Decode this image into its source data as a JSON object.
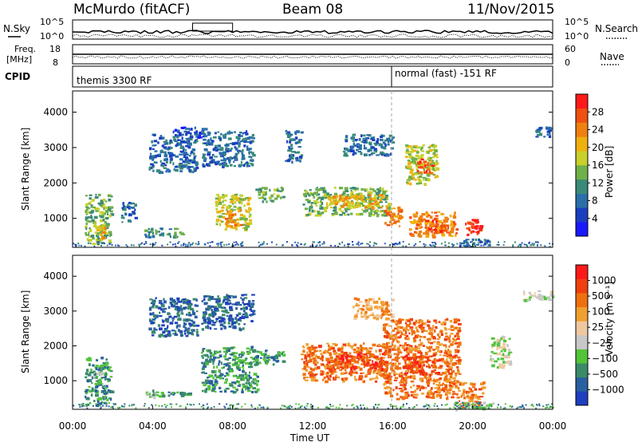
{
  "header": {
    "station": "McMurdo (fitACF)",
    "beam": "Beam 08",
    "date": "11/Nov/2015"
  },
  "summary_panels": {
    "nsky_label": "N.Sky",
    "nsearch_label": "N.Search",
    "freq_label_line1": "Freq.",
    "freq_label_line2": "[MHz]",
    "nave_label": "Nave",
    "cpid_label": "CPID",
    "noise_left_ticks": [
      "10^5",
      "10^0"
    ],
    "noise_right_ticks": [
      "10^5",
      "10^0"
    ],
    "freq_left_ticks": [
      "18",
      "8"
    ],
    "nave_right_ticks": [
      "60",
      "0"
    ],
    "cpid_segments": [
      {
        "label": "themis 3300 RF",
        "start_hour": 0
      },
      {
        "label": "normal (fast) -151 RF",
        "start_hour": 16
      }
    ]
  },
  "chart_data": [
    {
      "type": "heatmap",
      "name": "power",
      "ylabel": "Slant Range [km]",
      "ylim": [
        180,
        4600
      ],
      "xlim": [
        0,
        24
      ],
      "yticks": [
        1000,
        2000,
        3000,
        4000
      ],
      "colorbar": {
        "label": "Power [dB]",
        "ticks": [
          "4",
          "8",
          "12",
          "16",
          "20",
          "24",
          "28"
        ],
        "colors": [
          "#1a1aff",
          "#1a3fbf",
          "#2a6fa8",
          "#3a8a78",
          "#6fb04a",
          "#c8d02a",
          "#f0b010",
          "#f08010",
          "#f05010",
          "#ff1a1a"
        ]
      },
      "cells": [
        {
          "t0": 0.6,
          "t1": 1.9,
          "r0": 300,
          "r1": 1700,
          "c": 4
        },
        {
          "t0": 1.1,
          "t1": 1.6,
          "r0": 400,
          "r1": 800,
          "c": 6
        },
        {
          "t0": 2.4,
          "t1": 3.1,
          "r0": 900,
          "r1": 1500,
          "c": 2
        },
        {
          "t0": 3.5,
          "t1": 5.5,
          "r0": 500,
          "r1": 750,
          "c": 3
        },
        {
          "t0": 3.8,
          "t1": 6.2,
          "r0": 2300,
          "r1": 3400,
          "c": 2
        },
        {
          "t0": 5.0,
          "t1": 6.6,
          "r0": 3300,
          "r1": 3600,
          "c": 1
        },
        {
          "t0": 7.1,
          "t1": 8.9,
          "r0": 700,
          "r1": 1700,
          "c": 5
        },
        {
          "t0": 7.6,
          "t1": 8.4,
          "r0": 800,
          "r1": 1300,
          "c": 7
        },
        {
          "t0": 6.4,
          "t1": 9.0,
          "r0": 2500,
          "r1": 3500,
          "c": 2
        },
        {
          "t0": 9.1,
          "t1": 10.5,
          "r0": 1500,
          "r1": 1900,
          "c": 4
        },
        {
          "t0": 10.6,
          "t1": 11.4,
          "r0": 2600,
          "r1": 3500,
          "c": 2
        },
        {
          "t0": 11.5,
          "t1": 15.8,
          "r0": 1100,
          "r1": 1900,
          "c": 4
        },
        {
          "t0": 12.5,
          "t1": 15.5,
          "r0": 1300,
          "r1": 1700,
          "c": 6
        },
        {
          "t0": 13.5,
          "t1": 16.0,
          "r0": 2800,
          "r1": 3400,
          "c": 2
        },
        {
          "t0": 15.5,
          "t1": 16.4,
          "r0": 800,
          "r1": 1400,
          "c": 7
        },
        {
          "t0": 16.6,
          "t1": 18.2,
          "r0": 2000,
          "r1": 3100,
          "c": 5
        },
        {
          "t0": 17.2,
          "t1": 18.0,
          "r0": 2300,
          "r1": 2700,
          "c": 8
        },
        {
          "t0": 16.8,
          "t1": 19.2,
          "r0": 500,
          "r1": 1200,
          "c": 7
        },
        {
          "t0": 17.6,
          "t1": 18.6,
          "r0": 600,
          "r1": 1000,
          "c": 8
        },
        {
          "t0": 19.5,
          "t1": 20.4,
          "r0": 550,
          "r1": 1000,
          "c": 9
        },
        {
          "t0": 19.3,
          "t1": 21.0,
          "r0": 250,
          "r1": 450,
          "c": 2
        },
        {
          "t0": 23.0,
          "t1": 23.9,
          "r0": 3300,
          "r1": 3600,
          "c": 2
        }
      ]
    },
    {
      "type": "heatmap",
      "name": "velocity",
      "ylabel": "Slant Range [km]",
      "xlabel": "Time UT",
      "ylim": [
        180,
        4600
      ],
      "xlim": [
        0,
        24
      ],
      "yticks": [
        1000,
        2000,
        3000,
        4000
      ],
      "xticks": [
        "00:00",
        "04:00",
        "08:00",
        "12:00",
        "16:00",
        "20:00",
        "00:00"
      ],
      "colorbar": {
        "label": "Velocity [m s⁻¹]",
        "ticks": [
          "1000",
          "500",
          "100",
          "25",
          "−25",
          "−100",
          "−500",
          "−1000"
        ],
        "colors": [
          "#1f3fbf",
          "#2a5fa0",
          "#3a8a6a",
          "#52c43a",
          "#c8c8c8",
          "#f0c8a0",
          "#f0a030",
          "#f07010",
          "#f04010",
          "#ff1a1a"
        ]
      },
      "cells": [
        {
          "t0": 0.6,
          "t1": 1.9,
          "r0": 300,
          "r1": 1700,
          "c": 2
        },
        {
          "t0": 1.0,
          "t1": 1.5,
          "r0": 900,
          "r1": 1300,
          "c": 3
        },
        {
          "t0": 3.5,
          "t1": 4.5,
          "r0": 550,
          "r1": 750,
          "c": 3
        },
        {
          "t0": 4.6,
          "t1": 6.0,
          "r0": 600,
          "r1": 700,
          "c": 2
        },
        {
          "t0": 3.8,
          "t1": 6.2,
          "r0": 2300,
          "r1": 3400,
          "c": 1
        },
        {
          "t0": 6.4,
          "t1": 9.2,
          "r0": 700,
          "r1": 2000,
          "c": 2
        },
        {
          "t0": 6.4,
          "t1": 9.0,
          "r0": 2500,
          "r1": 3500,
          "c": 1
        },
        {
          "t0": 9.1,
          "t1": 10.5,
          "r0": 1500,
          "r1": 1900,
          "c": 2
        },
        {
          "t0": 11.4,
          "t1": 15.9,
          "r0": 1000,
          "r1": 2100,
          "c": 7
        },
        {
          "t0": 12.8,
          "t1": 15.5,
          "r0": 1300,
          "r1": 1800,
          "c": 8
        },
        {
          "t0": 14.0,
          "t1": 16.0,
          "r0": 2800,
          "r1": 3400,
          "c": 6
        },
        {
          "t0": 15.5,
          "t1": 19.3,
          "r0": 500,
          "r1": 2800,
          "c": 7
        },
        {
          "t0": 16.5,
          "t1": 18.3,
          "r0": 1200,
          "r1": 1800,
          "c": 8
        },
        {
          "t0": 19.3,
          "t1": 20.5,
          "r0": 250,
          "r1": 1000,
          "c": 7
        },
        {
          "t0": 20.8,
          "t1": 21.8,
          "r0": 1400,
          "r1": 2300,
          "c": 4
        },
        {
          "t0": 22.5,
          "t1": 24.0,
          "r0": 3300,
          "r1": 3600,
          "c": 4
        },
        {
          "t0": 19.0,
          "t1": 21.0,
          "r0": 200,
          "r1": 400,
          "c": 3
        }
      ]
    }
  ]
}
